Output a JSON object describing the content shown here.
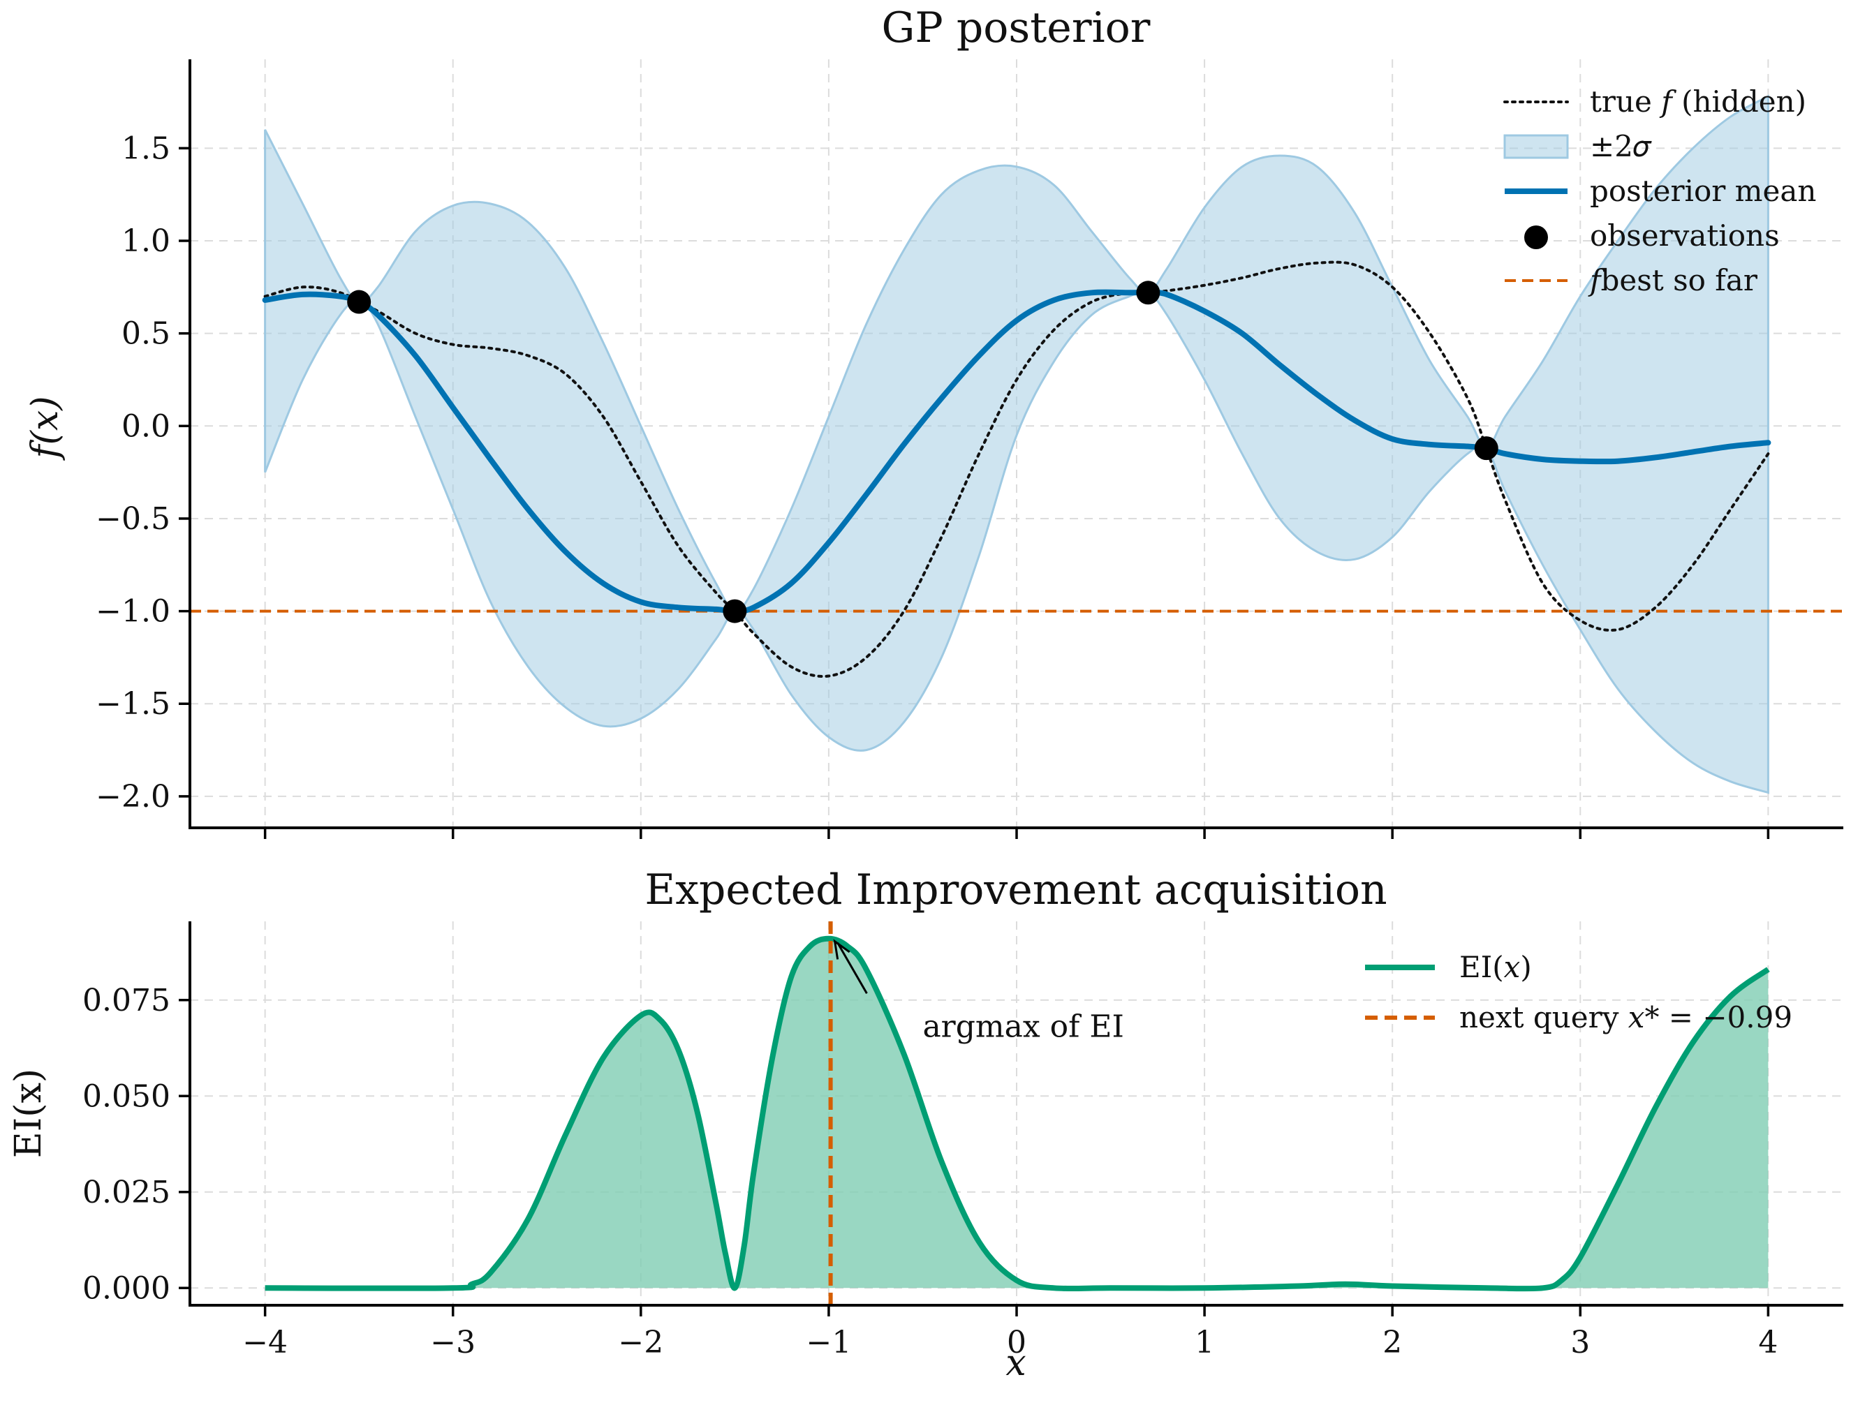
{
  "chart_data": [
    {
      "type": "line",
      "title": "GP posterior",
      "xlabel": "",
      "ylabel": "f(x)",
      "xlim": [
        -4.4,
        4.4
      ],
      "ylim": [
        -2.17,
        1.98
      ],
      "xticks": [
        -4,
        -3,
        -2,
        -1,
        0,
        1,
        2,
        3,
        4
      ],
      "yticks": [
        -2.0,
        -1.5,
        -1.0,
        -0.5,
        0.0,
        0.5,
        1.0,
        1.5
      ],
      "ytick_labels": [
        "−2.0",
        "−1.5",
        "−1.0",
        "−0.5",
        "0.0",
        "0.5",
        "1.0",
        "1.5"
      ],
      "grid": true,
      "legend_position": "top-right",
      "colors": {
        "mean": "#0072b2",
        "band": "#9ec9e2",
        "true": "#111111",
        "obs": "#000000",
        "fbest": "#d55e00"
      },
      "series": [
        {
          "name": "true f (hidden)",
          "x": [
            -4.0,
            -3.8,
            -3.6,
            -3.4,
            -3.2,
            -3.0,
            -2.8,
            -2.6,
            -2.4,
            -2.2,
            -2.0,
            -1.8,
            -1.6,
            -1.5,
            -1.4,
            -1.2,
            -1.0,
            -0.8,
            -0.6,
            -0.4,
            -0.2,
            0.0,
            0.2,
            0.4,
            0.6,
            0.7,
            0.8,
            1.0,
            1.2,
            1.4,
            1.6,
            1.8,
            2.0,
            2.2,
            2.4,
            2.5,
            2.6,
            2.8,
            3.0,
            3.2,
            3.4,
            3.6,
            3.8,
            4.0
          ],
          "y": [
            0.7,
            0.75,
            0.72,
            0.62,
            0.5,
            0.44,
            0.42,
            0.38,
            0.28,
            0.05,
            -0.3,
            -0.65,
            -0.9,
            -1.0,
            -1.12,
            -1.3,
            -1.35,
            -1.25,
            -1.0,
            -0.6,
            -0.15,
            0.25,
            0.52,
            0.67,
            0.72,
            0.72,
            0.73,
            0.76,
            0.8,
            0.85,
            0.88,
            0.87,
            0.75,
            0.5,
            0.15,
            -0.12,
            -0.4,
            -0.85,
            -1.05,
            -1.1,
            -0.98,
            -0.75,
            -0.45,
            -0.15
          ]
        },
        {
          "name": "±2σ",
          "x": [
            -4.0,
            -3.8,
            -3.6,
            -3.5,
            -3.4,
            -3.2,
            -3.0,
            -2.8,
            -2.6,
            -2.4,
            -2.2,
            -2.0,
            -1.8,
            -1.6,
            -1.5,
            -1.4,
            -1.2,
            -1.0,
            -0.8,
            -0.6,
            -0.4,
            -0.2,
            0.0,
            0.2,
            0.4,
            0.6,
            0.7,
            0.8,
            1.0,
            1.2,
            1.4,
            1.6,
            1.8,
            2.0,
            2.2,
            2.4,
            2.5,
            2.6,
            2.8,
            3.0,
            3.2,
            3.4,
            3.6,
            3.8,
            4.0
          ],
          "upper": [
            1.6,
            1.2,
            0.8,
            0.67,
            0.75,
            1.05,
            1.19,
            1.2,
            1.1,
            0.85,
            0.45,
            0.0,
            -0.45,
            -0.85,
            -1.0,
            -0.88,
            -0.45,
            0.05,
            0.55,
            0.95,
            1.25,
            1.38,
            1.4,
            1.3,
            1.05,
            0.8,
            0.72,
            0.85,
            1.18,
            1.4,
            1.46,
            1.4,
            1.15,
            0.75,
            0.35,
            0.05,
            -0.12,
            0.05,
            0.35,
            0.7,
            1.0,
            1.28,
            1.5,
            1.67,
            1.78
          ],
          "lower": [
            -0.25,
            0.25,
            0.6,
            0.67,
            0.55,
            0.05,
            -0.45,
            -0.95,
            -1.3,
            -1.52,
            -1.62,
            -1.58,
            -1.42,
            -1.15,
            -1.0,
            -1.1,
            -1.45,
            -1.68,
            -1.75,
            -1.6,
            -1.25,
            -0.7,
            -0.05,
            0.35,
            0.6,
            0.7,
            0.72,
            0.6,
            0.25,
            -0.15,
            -0.5,
            -0.68,
            -0.72,
            -0.6,
            -0.35,
            -0.15,
            -0.12,
            -0.35,
            -0.75,
            -1.1,
            -1.42,
            -1.65,
            -1.82,
            -1.92,
            -1.98
          ]
        },
        {
          "name": "posterior mean",
          "x": [
            -4.0,
            -3.8,
            -3.6,
            -3.5,
            -3.4,
            -3.2,
            -3.0,
            -2.8,
            -2.6,
            -2.4,
            -2.2,
            -2.0,
            -1.8,
            -1.6,
            -1.5,
            -1.4,
            -1.2,
            -1.0,
            -0.8,
            -0.6,
            -0.4,
            -0.2,
            0.0,
            0.2,
            0.4,
            0.6,
            0.7,
            0.8,
            1.0,
            1.2,
            1.4,
            1.6,
            1.8,
            2.0,
            2.2,
            2.4,
            2.5,
            2.6,
            2.8,
            3.0,
            3.2,
            3.4,
            3.6,
            3.8,
            4.0
          ],
          "y": [
            0.68,
            0.71,
            0.7,
            0.67,
            0.6,
            0.38,
            0.1,
            -0.18,
            -0.45,
            -0.68,
            -0.85,
            -0.95,
            -0.98,
            -0.99,
            -1.0,
            -0.98,
            -0.85,
            -0.63,
            -0.37,
            -0.1,
            0.15,
            0.38,
            0.57,
            0.68,
            0.72,
            0.72,
            0.72,
            0.71,
            0.62,
            0.5,
            0.33,
            0.17,
            0.03,
            -0.07,
            -0.1,
            -0.11,
            -0.12,
            -0.15,
            -0.18,
            -0.19,
            -0.19,
            -0.17,
            -0.14,
            -0.11,
            -0.09
          ]
        },
        {
          "name": "observations",
          "x": [
            -3.5,
            -1.5,
            0.7,
            2.5
          ],
          "y": [
            0.67,
            -1.0,
            0.72,
            -0.12
          ]
        },
        {
          "name": "f_best so far",
          "y_constant": -1.0
        }
      ],
      "legend": [
        {
          "key": "true",
          "text": "true 𝑓 (hidden)"
        },
        {
          "key": "band",
          "text": "±2𝜎"
        },
        {
          "key": "mean",
          "text": "posterior mean"
        },
        {
          "key": "obs",
          "text": "observations"
        },
        {
          "key": "fbest",
          "text": "𝑓best so far"
        }
      ]
    },
    {
      "type": "area",
      "title": "Expected Improvement acquisition",
      "xlabel": "x",
      "ylabel": "EI(x)",
      "xlim": [
        -4.4,
        4.4
      ],
      "ylim": [
        -0.0045,
        0.0955
      ],
      "xticks": [
        -4,
        -3,
        -2,
        -1,
        0,
        1,
        2,
        3,
        4
      ],
      "xtick_labels": [
        "−4",
        "−3",
        "−2",
        "−1",
        "0",
        "1",
        "2",
        "3",
        "4"
      ],
      "yticks": [
        0.0,
        0.025,
        0.05,
        0.075
      ],
      "ytick_labels": [
        "0.000",
        "0.025",
        "0.050",
        "0.075"
      ],
      "grid": true,
      "legend_position": "top-right",
      "colors": {
        "ei": "#009e73",
        "fill": "#7fcdb3",
        "next": "#d55e00",
        "arrow": "#000000"
      },
      "series": [
        {
          "name": "EI(x)",
          "x": [
            -4.0,
            -3.0,
            -2.9,
            -2.8,
            -2.6,
            -2.4,
            -2.2,
            -2.0,
            -1.9,
            -1.8,
            -1.7,
            -1.6,
            -1.55,
            -1.5,
            -1.45,
            -1.4,
            -1.3,
            -1.2,
            -1.1,
            -1.0,
            -0.9,
            -0.8,
            -0.6,
            -0.4,
            -0.2,
            0.0,
            0.2,
            0.5,
            1.0,
            1.5,
            1.75,
            2.0,
            2.5,
            2.8,
            2.9,
            3.0,
            3.2,
            3.4,
            3.6,
            3.8,
            4.0
          ],
          "y": [
            0.0,
            0.0,
            0.001,
            0.004,
            0.018,
            0.04,
            0.06,
            0.071,
            0.07,
            0.062,
            0.046,
            0.022,
            0.009,
            0.0,
            0.011,
            0.03,
            0.06,
            0.081,
            0.089,
            0.091,
            0.089,
            0.083,
            0.061,
            0.033,
            0.012,
            0.002,
            0.0,
            0.0,
            0.0,
            0.0005,
            0.001,
            0.0005,
            0.0,
            0.0,
            0.002,
            0.008,
            0.027,
            0.047,
            0.064,
            0.076,
            0.083
          ]
        },
        {
          "name": "next query",
          "x_constant": -0.99
        }
      ],
      "annotation": {
        "text": "argmax of EI",
        "xy": [
          -0.99,
          0.091
        ],
        "xytext": [
          -0.5,
          0.068
        ]
      },
      "legend": [
        {
          "key": "ei",
          "text": "EI(𝑥)"
        },
        {
          "key": "next",
          "text": "next query 𝑥* = −0.99"
        }
      ]
    }
  ]
}
